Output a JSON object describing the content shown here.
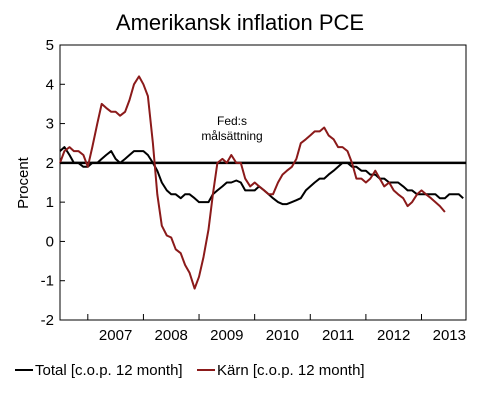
{
  "chart_data": {
    "type": "line",
    "title": "Amerikansk inflation PCE",
    "ylabel": "Procent",
    "ylim": [
      -2,
      5
    ],
    "yticks": [
      "5",
      "4",
      "3",
      "2",
      "1",
      "0",
      "-1",
      "-2"
    ],
    "xlim": [
      2006.5,
      2013.8
    ],
    "x_ticks": [
      "2007",
      "2008",
      "2009",
      "2010",
      "2011",
      "2012",
      "2013"
    ],
    "reference_line": {
      "value": 2,
      "label_line1": "Fed:s",
      "label_line2": "målsättning",
      "color": "#000000"
    },
    "legend_position": "bottom",
    "series": [
      {
        "name": "Total [c.o.p. 12 month]",
        "color": "#000000",
        "points": [
          [
            2006.5,
            2.3
          ],
          [
            2006.58,
            2.4
          ],
          [
            2006.67,
            2.2
          ],
          [
            2006.75,
            2.0
          ],
          [
            2006.83,
            2.0
          ],
          [
            2006.92,
            1.9
          ],
          [
            2007.0,
            1.9
          ],
          [
            2007.08,
            2.0
          ],
          [
            2007.17,
            2.0
          ],
          [
            2007.25,
            2.1
          ],
          [
            2007.33,
            2.2
          ],
          [
            2007.42,
            2.3
          ],
          [
            2007.5,
            2.1
          ],
          [
            2007.58,
            2.0
          ],
          [
            2007.67,
            2.1
          ],
          [
            2007.75,
            2.2
          ],
          [
            2007.83,
            2.3
          ],
          [
            2007.92,
            2.3
          ],
          [
            2008.0,
            2.3
          ],
          [
            2008.08,
            2.2
          ],
          [
            2008.17,
            2.0
          ],
          [
            2008.25,
            1.8
          ],
          [
            2008.33,
            1.5
          ],
          [
            2008.42,
            1.3
          ],
          [
            2008.5,
            1.2
          ],
          [
            2008.58,
            1.2
          ],
          [
            2008.67,
            1.1
          ],
          [
            2008.75,
            1.2
          ],
          [
            2008.83,
            1.2
          ],
          [
            2008.92,
            1.1
          ],
          [
            2009.0,
            1.0
          ],
          [
            2009.08,
            1.0
          ],
          [
            2009.17,
            1.0
          ],
          [
            2009.25,
            1.2
          ],
          [
            2009.33,
            1.3
          ],
          [
            2009.42,
            1.4
          ],
          [
            2009.5,
            1.5
          ],
          [
            2009.58,
            1.5
          ],
          [
            2009.67,
            1.55
          ],
          [
            2009.75,
            1.5
          ],
          [
            2009.83,
            1.3
          ],
          [
            2009.92,
            1.3
          ],
          [
            2010.0,
            1.3
          ],
          [
            2010.08,
            1.4
          ],
          [
            2010.17,
            1.3
          ],
          [
            2010.25,
            1.2
          ],
          [
            2010.33,
            1.1
          ],
          [
            2010.42,
            1.0
          ],
          [
            2010.5,
            0.95
          ],
          [
            2010.58,
            0.95
          ],
          [
            2010.67,
            1.0
          ],
          [
            2010.75,
            1.05
          ],
          [
            2010.83,
            1.1
          ],
          [
            2010.92,
            1.3
          ],
          [
            2011.0,
            1.4
          ],
          [
            2011.08,
            1.5
          ],
          [
            2011.17,
            1.6
          ],
          [
            2011.25,
            1.6
          ],
          [
            2011.33,
            1.7
          ],
          [
            2011.42,
            1.8
          ],
          [
            2011.5,
            1.9
          ],
          [
            2011.58,
            2.0
          ],
          [
            2011.67,
            2.0
          ],
          [
            2011.75,
            1.9
          ],
          [
            2011.83,
            1.9
          ],
          [
            2011.92,
            1.8
          ],
          [
            2012.0,
            1.8
          ],
          [
            2012.08,
            1.7
          ],
          [
            2012.17,
            1.7
          ],
          [
            2012.25,
            1.6
          ],
          [
            2012.33,
            1.6
          ],
          [
            2012.42,
            1.5
          ],
          [
            2012.5,
            1.5
          ],
          [
            2012.58,
            1.5
          ],
          [
            2012.67,
            1.4
          ],
          [
            2012.75,
            1.3
          ],
          [
            2012.83,
            1.3
          ],
          [
            2012.92,
            1.2
          ],
          [
            2013.0,
            1.2
          ],
          [
            2013.08,
            1.2
          ],
          [
            2013.17,
            1.2
          ],
          [
            2013.25,
            1.2
          ],
          [
            2013.33,
            1.1
          ],
          [
            2013.42,
            1.1
          ],
          [
            2013.5,
            1.2
          ],
          [
            2013.58,
            1.2
          ],
          [
            2013.67,
            1.2
          ],
          [
            2013.75,
            1.1
          ]
        ]
      },
      {
        "name": "Kärn [c.o.p. 12 month]",
        "color": "#8b1a1a",
        "points": [
          [
            2006.5,
            2.0
          ],
          [
            2006.58,
            2.3
          ],
          [
            2006.67,
            2.4
          ],
          [
            2006.75,
            2.3
          ],
          [
            2006.83,
            2.3
          ],
          [
            2006.92,
            2.2
          ],
          [
            2007.0,
            1.9
          ],
          [
            2007.08,
            2.4
          ],
          [
            2007.17,
            3.0
          ],
          [
            2007.25,
            3.5
          ],
          [
            2007.33,
            3.4
          ],
          [
            2007.42,
            3.3
          ],
          [
            2007.5,
            3.3
          ],
          [
            2007.58,
            3.2
          ],
          [
            2007.67,
            3.3
          ],
          [
            2007.75,
            3.6
          ],
          [
            2007.83,
            4.0
          ],
          [
            2007.92,
            4.2
          ],
          [
            2008.0,
            4.0
          ],
          [
            2008.08,
            3.7
          ],
          [
            2008.17,
            2.5
          ],
          [
            2008.25,
            1.2
          ],
          [
            2008.33,
            0.4
          ],
          [
            2008.42,
            0.15
          ],
          [
            2008.5,
            0.1
          ],
          [
            2008.58,
            -0.2
          ],
          [
            2008.67,
            -0.3
          ],
          [
            2008.75,
            -0.6
          ],
          [
            2008.83,
            -0.8
          ],
          [
            2008.92,
            -1.2
          ],
          [
            2009.0,
            -0.9
          ],
          [
            2009.08,
            -0.4
          ],
          [
            2009.17,
            0.3
          ],
          [
            2009.25,
            1.2
          ],
          [
            2009.33,
            2.0
          ],
          [
            2009.42,
            2.1
          ],
          [
            2009.5,
            2.0
          ],
          [
            2009.58,
            2.2
          ],
          [
            2009.67,
            2.0
          ],
          [
            2009.75,
            2.0
          ],
          [
            2009.83,
            1.6
          ],
          [
            2009.92,
            1.4
          ],
          [
            2010.0,
            1.5
          ],
          [
            2010.08,
            1.4
          ],
          [
            2010.17,
            1.3
          ],
          [
            2010.25,
            1.2
          ],
          [
            2010.33,
            1.2
          ],
          [
            2010.42,
            1.5
          ],
          [
            2010.5,
            1.7
          ],
          [
            2010.58,
            1.8
          ],
          [
            2010.67,
            1.9
          ],
          [
            2010.75,
            2.1
          ],
          [
            2010.83,
            2.5
          ],
          [
            2010.92,
            2.6
          ],
          [
            2011.0,
            2.7
          ],
          [
            2011.08,
            2.8
          ],
          [
            2011.17,
            2.8
          ],
          [
            2011.25,
            2.9
          ],
          [
            2011.33,
            2.7
          ],
          [
            2011.42,
            2.6
          ],
          [
            2011.5,
            2.4
          ],
          [
            2011.58,
            2.4
          ],
          [
            2011.67,
            2.3
          ],
          [
            2011.75,
            2.0
          ],
          [
            2011.83,
            1.6
          ],
          [
            2011.92,
            1.6
          ],
          [
            2012.0,
            1.5
          ],
          [
            2012.08,
            1.6
          ],
          [
            2012.17,
            1.8
          ],
          [
            2012.25,
            1.6
          ],
          [
            2012.33,
            1.4
          ],
          [
            2012.42,
            1.5
          ],
          [
            2012.5,
            1.3
          ],
          [
            2012.58,
            1.2
          ],
          [
            2012.67,
            1.1
          ],
          [
            2012.75,
            0.9
          ],
          [
            2012.83,
            1.0
          ],
          [
            2012.92,
            1.2
          ],
          [
            2013.0,
            1.3
          ],
          [
            2013.08,
            1.2
          ],
          [
            2013.17,
            1.1
          ],
          [
            2013.25,
            1.0
          ],
          [
            2013.33,
            0.9
          ],
          [
            2013.42,
            0.75
          ]
        ]
      }
    ]
  }
}
